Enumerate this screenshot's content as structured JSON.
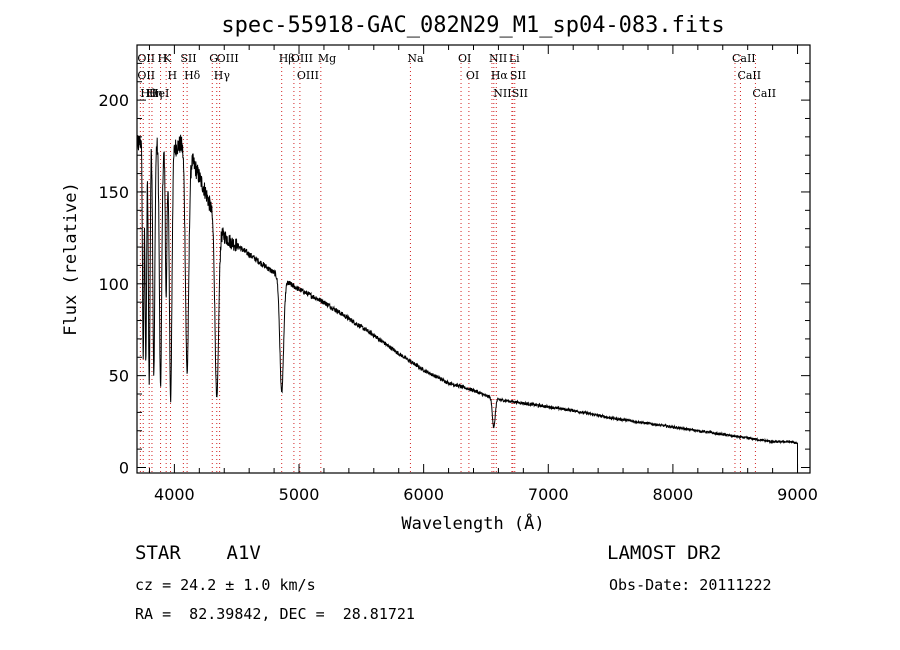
{
  "chart_data": {
    "type": "line",
    "title": "spec-55918-GAC_082N29_M1_sp04-083.fits",
    "xlabel": "Wavelength (Å)",
    "ylabel": "Flux (relative)",
    "xlim": [
      3700,
      9100
    ],
    "ylim": [
      -3,
      230
    ],
    "x_ticks": [
      4000,
      5000,
      6000,
      7000,
      8000,
      9000
    ],
    "y_ticks": [
      0,
      50,
      100,
      150,
      200
    ],
    "grid": false,
    "line_color": "#000000",
    "marker_line_color": "#d22222",
    "continuum": {
      "x": [
        3700,
        3750,
        3800,
        3850,
        3900,
        3950,
        4000,
        4050,
        4100,
        4150,
        4200,
        4250,
        4300,
        4350,
        4400,
        4450,
        4500,
        4600,
        4700,
        4800,
        4900,
        5000,
        5200,
        5400,
        5600,
        5800,
        6000,
        6200,
        6400,
        6500,
        6600,
        6800,
        7000,
        7200,
        7500,
        7800,
        8000,
        8200,
        8400,
        8600,
        8800,
        8950,
        9000
      ],
      "y": [
        175,
        180,
        185,
        178,
        172,
        170,
        174,
        176,
        172,
        166,
        158,
        150,
        140,
        130,
        126,
        123,
        121,
        116,
        111,
        106,
        101,
        97,
        90,
        81,
        72,
        62,
        53,
        46,
        42,
        39,
        37,
        35,
        33,
        31,
        27,
        24,
        22,
        20,
        18,
        16,
        14,
        14,
        13
      ]
    },
    "absorption_features": [
      {
        "center": 3750,
        "depth": 120,
        "width": 6
      },
      {
        "center": 3771,
        "depth": 125,
        "width": 6
      },
      {
        "center": 3798,
        "depth": 138,
        "width": 7
      },
      {
        "center": 3835,
        "depth": 130,
        "width": 8
      },
      {
        "center": 3889,
        "depth": 130,
        "width": 9
      },
      {
        "center": 3934,
        "depth": 80,
        "width": 6
      },
      {
        "center": 3970,
        "depth": 135,
        "width": 10
      },
      {
        "center": 4102,
        "depth": 120,
        "width": 13
      },
      {
        "center": 4340,
        "depth": 95,
        "width": 14
      },
      {
        "center": 4861,
        "depth": 62,
        "width": 15
      },
      {
        "center": 6563,
        "depth": 16,
        "width": 11
      }
    ],
    "line_markers": [
      {
        "wavelength": 3727,
        "labels": [
          "OII",
          "OII"
        ]
      },
      {
        "wavelength": 3750,
        "labels": [
          "Hθ"
        ]
      },
      {
        "wavelength": 3798,
        "labels": [
          "Hη"
        ]
      },
      {
        "wavelength": 3820,
        "labels": [
          "HeI"
        ]
      },
      {
        "wavelength": 3889,
        "labels": [
          "H"
        ]
      },
      {
        "wavelength": 3934,
        "labels": [
          "K"
        ]
      },
      {
        "wavelength": 3969,
        "labels": [
          "H"
        ]
      },
      {
        "wavelength": 4072,
        "labels": [
          "SII"
        ]
      },
      {
        "wavelength": 4102,
        "labels": [
          "Hδ"
        ]
      },
      {
        "wavelength": 4304,
        "labels": [
          "G"
        ]
      },
      {
        "wavelength": 4340,
        "labels": [
          "Hγ"
        ]
      },
      {
        "wavelength": 4363,
        "labels": [
          "OIII"
        ]
      },
      {
        "wavelength": 4861,
        "labels": [
          "Hβ"
        ]
      },
      {
        "wavelength": 4959,
        "labels": [
          "OIII"
        ]
      },
      {
        "wavelength": 5007,
        "labels": [
          "OIII"
        ]
      },
      {
        "wavelength": 5175,
        "labels": [
          "Mg"
        ]
      },
      {
        "wavelength": 5894,
        "labels": [
          "Na"
        ]
      },
      {
        "wavelength": 6300,
        "labels": [
          "OI"
        ]
      },
      {
        "wavelength": 6363,
        "labels": [
          "OI"
        ]
      },
      {
        "wavelength": 6548,
        "labels": [
          "NII"
        ]
      },
      {
        "wavelength": 6563,
        "labels": [
          "Hα"
        ]
      },
      {
        "wavelength": 6583,
        "labels": [
          "NII"
        ]
      },
      {
        "wavelength": 6708,
        "labels": [
          "Li"
        ]
      },
      {
        "wavelength": 6716,
        "labels": [
          "SII"
        ]
      },
      {
        "wavelength": 6731,
        "labels": [
          "SII"
        ]
      },
      {
        "wavelength": 8498,
        "labels": [
          "CaII"
        ]
      },
      {
        "wavelength": 8542,
        "labels": [
          "CaII"
        ]
      },
      {
        "wavelength": 8662,
        "labels": [
          "CaII"
        ]
      }
    ]
  },
  "info": {
    "class_line": "STAR    A1V",
    "survey": "LAMOST DR2",
    "redshift_line": "cz = 24.2 ± 1.0 km/s",
    "obs_date": "Obs-Date: 20111222",
    "coords": "RA =  82.39842, DEC =  28.81721"
  }
}
